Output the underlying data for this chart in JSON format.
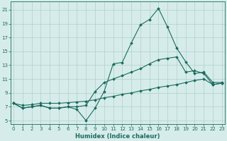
{
  "title": "",
  "xlabel": "Humidex (Indice chaleur)",
  "ylabel": "",
  "background_color": "#d6ecea",
  "grid_color": "#b0cfcc",
  "line_color": "#1a6b5e",
  "x_ticks": [
    0,
    1,
    2,
    3,
    4,
    5,
    6,
    7,
    8,
    9,
    10,
    11,
    12,
    13,
    14,
    15,
    16,
    17,
    18,
    19,
    20,
    21,
    22,
    23
  ],
  "y_ticks": [
    5,
    7,
    9,
    11,
    13,
    15,
    17,
    19,
    21
  ],
  "xlim": [
    -0.3,
    23.3
  ],
  "ylim": [
    4.5,
    22.2
  ],
  "series": [
    {
      "x": [
        0,
        1,
        2,
        3,
        4,
        5,
        6,
        7,
        8,
        9,
        10,
        11,
        12,
        13,
        14,
        15,
        16,
        17,
        18,
        19,
        20,
        21,
        22,
        23
      ],
      "y": [
        7.5,
        6.8,
        7.0,
        7.2,
        6.8,
        6.8,
        7.0,
        6.6,
        5.0,
        6.8,
        9.2,
        13.2,
        13.4,
        16.2,
        18.8,
        19.6,
        21.2,
        18.5,
        15.5,
        13.5,
        11.8,
        12.0,
        10.5,
        10.5
      ]
    },
    {
      "x": [
        0,
        1,
        2,
        3,
        4,
        5,
        6,
        7,
        8,
        9,
        10,
        11,
        12,
        13,
        14,
        15,
        16,
        17,
        18,
        19,
        20,
        21,
        22,
        23
      ],
      "y": [
        7.5,
        6.8,
        7.0,
        7.2,
        6.8,
        6.8,
        7.0,
        7.0,
        7.2,
        9.2,
        10.5,
        11.0,
        11.5,
        12.0,
        12.5,
        13.2,
        13.8,
        14.0,
        14.2,
        12.0,
        12.2,
        11.8,
        10.2,
        10.4
      ]
    },
    {
      "x": [
        0,
        1,
        2,
        3,
        4,
        5,
        6,
        7,
        8,
        9,
        10,
        11,
        12,
        13,
        14,
        15,
        16,
        17,
        18,
        19,
        20,
        21,
        22,
        23
      ],
      "y": [
        7.5,
        7.2,
        7.3,
        7.5,
        7.5,
        7.5,
        7.6,
        7.7,
        7.8,
        8.0,
        8.3,
        8.5,
        8.8,
        9.0,
        9.3,
        9.5,
        9.8,
        10.0,
        10.2,
        10.5,
        10.8,
        11.0,
        10.2,
        10.4
      ]
    }
  ],
  "tick_fontsize": 5.0,
  "xlabel_fontsize": 6.0,
  "marker_size": 2.0,
  "linewidth": 0.8
}
